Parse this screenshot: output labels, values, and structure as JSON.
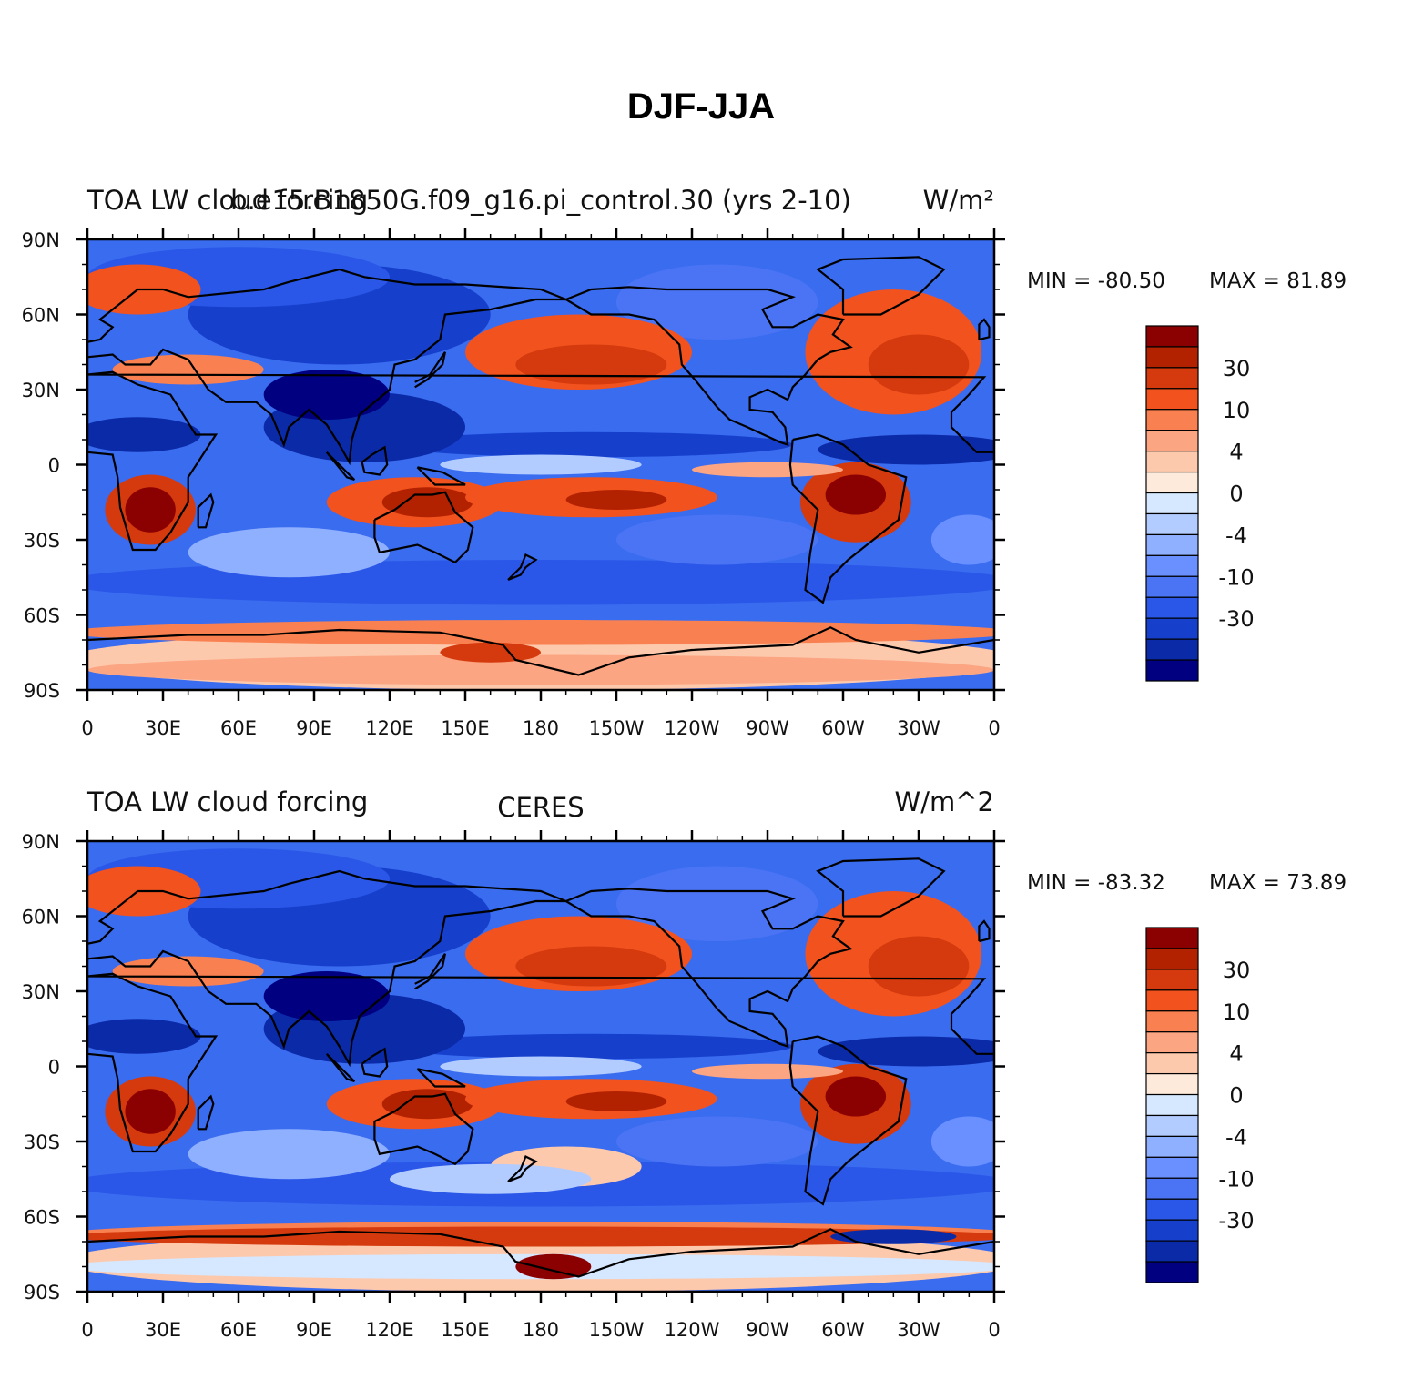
{
  "title": "DJF-JJA",
  "panels": [
    {
      "left_title": "TOA LW cloud forcing",
      "center_title": "b.e15.B1850G.f09_g16.pi_control.30 (yrs 2-10)",
      "units": "W/m²",
      "min_label": "MIN = -80.50",
      "max_label": "MAX =  81.89",
      "chart_data": {
        "type": "heatmap",
        "lat_range": [
          -90,
          90
        ],
        "lon_range": [
          0,
          360
        ],
        "min": -80.5,
        "max": 81.89,
        "levels": [
          -50,
          -40,
          -30,
          -20,
          -10,
          -6,
          -4,
          -2,
          0,
          2,
          4,
          6,
          10,
          20,
          30,
          40,
          50
        ]
      }
    },
    {
      "left_title": "TOA LW cloud forcing",
      "center_title": "CERES",
      "units": "W/m^2",
      "min_label": "MIN = -83.32",
      "max_label": "MAX =  73.89",
      "chart_data": {
        "type": "heatmap",
        "lat_range": [
          -90,
          90
        ],
        "lon_range": [
          0,
          360
        ],
        "min": -83.32,
        "max": 73.89,
        "levels": [
          -50,
          -40,
          -30,
          -20,
          -10,
          -6,
          -4,
          -2,
          0,
          2,
          4,
          6,
          10,
          20,
          30,
          40,
          50
        ]
      }
    }
  ],
  "y_ticks": [
    "90N",
    "60N",
    "30N",
    "0",
    "30S",
    "60S",
    "90S"
  ],
  "x_ticks": [
    "0",
    "30E",
    "60E",
    "90E",
    "120E",
    "150E",
    "180",
    "150W",
    "120W",
    "90W",
    "60W",
    "30W",
    "0"
  ],
  "colorbar_labels": [
    "30",
    "10",
    "4",
    "0",
    "-4",
    "-10",
    "-30"
  ],
  "colorbar_colors": [
    "#8b0000",
    "#b22200",
    "#d43a0d",
    "#f2521e",
    "#f98050",
    "#fca582",
    "#fdc9ad",
    "#feeadb",
    "#d6e8ff",
    "#b2ccff",
    "#8fb0ff",
    "#6a90ff",
    "#4b74f5",
    "#2a57e8",
    "#1640cc",
    "#0b2aa8",
    "#000080"
  ]
}
